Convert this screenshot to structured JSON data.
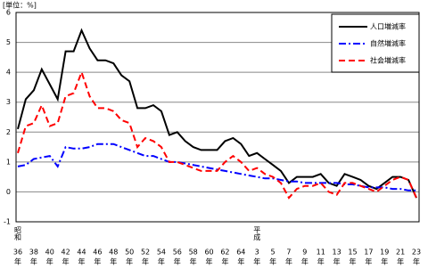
{
  "chart_data": {
    "type": "line",
    "unit_label": "[単位：%]",
    "categories": [
      "36",
      null,
      "38",
      null,
      "40",
      null,
      "42",
      null,
      "44",
      null,
      "46",
      null,
      "48",
      null,
      "50",
      null,
      "52",
      null,
      "54",
      null,
      "56",
      null,
      "58",
      null,
      "60",
      null,
      "62",
      null,
      "64",
      null,
      "3",
      null,
      "5",
      null,
      "7",
      null,
      "9",
      null,
      "11",
      null,
      "13",
      null,
      "15",
      null,
      "17",
      null,
      "19",
      null,
      "21",
      null,
      "23"
    ],
    "category_suffix": "年",
    "eras": [
      {
        "index": 0,
        "label": "昭和"
      },
      {
        "index": 30,
        "label": "平成"
      }
    ],
    "ylim": [
      -1,
      6
    ],
    "yticks": [
      -1,
      0,
      1,
      2,
      3,
      4,
      5,
      6
    ],
    "grid": true,
    "legend": "top-right",
    "series": [
      {
        "name": "人口増減率",
        "color": "#000000",
        "dash": "none",
        "values": [
          2.1,
          3.1,
          3.4,
          4.1,
          3.6,
          3.1,
          4.7,
          4.7,
          5.4,
          4.8,
          4.4,
          4.4,
          4.3,
          3.9,
          3.7,
          2.8,
          2.8,
          2.9,
          2.7,
          1.9,
          2.0,
          1.7,
          1.5,
          1.4,
          1.4,
          1.4,
          1.7,
          1.8,
          1.6,
          1.2,
          1.3,
          1.1,
          0.9,
          0.7,
          0.3,
          0.5,
          0.5,
          0.5,
          0.6,
          0.3,
          0.2,
          0.6,
          0.5,
          0.4,
          0.2,
          0.1,
          0.3,
          0.5,
          0.5,
          0.4,
          -0.2
        ]
      },
      {
        "name": "自然増減率",
        "color": "#0000ff",
        "dash": "8,3,2,3",
        "values": [
          0.85,
          0.9,
          1.1,
          1.15,
          1.2,
          0.85,
          1.5,
          1.45,
          1.45,
          1.5,
          1.6,
          1.6,
          1.6,
          1.5,
          1.4,
          1.3,
          1.2,
          1.2,
          1.1,
          1.0,
          1.0,
          0.95,
          0.9,
          0.85,
          0.8,
          0.75,
          0.7,
          0.65,
          0.6,
          0.55,
          0.5,
          0.45,
          0.45,
          0.4,
          0.35,
          0.35,
          0.3,
          0.3,
          0.3,
          0.3,
          0.3,
          0.25,
          0.25,
          0.2,
          0.15,
          0.15,
          0.15,
          0.1,
          0.1,
          0.05,
          0.05
        ]
      },
      {
        "name": "社会増減率",
        "color": "#ff0000",
        "dash": "7,4",
        "values": [
          1.3,
          2.2,
          2.3,
          2.9,
          2.2,
          2.3,
          3.2,
          3.3,
          4.0,
          3.2,
          2.8,
          2.8,
          2.7,
          2.4,
          2.3,
          1.5,
          1.8,
          1.7,
          1.5,
          1.0,
          1.0,
          0.9,
          0.8,
          0.7,
          0.7,
          0.7,
          1.0,
          1.2,
          1.0,
          0.7,
          0.8,
          0.6,
          0.5,
          0.3,
          -0.2,
          0.1,
          0.2,
          0.2,
          0.3,
          0.0,
          -0.1,
          0.3,
          0.3,
          0.2,
          0.1,
          0.0,
          0.2,
          0.4,
          0.5,
          0.4,
          -0.2
        ]
      }
    ]
  }
}
